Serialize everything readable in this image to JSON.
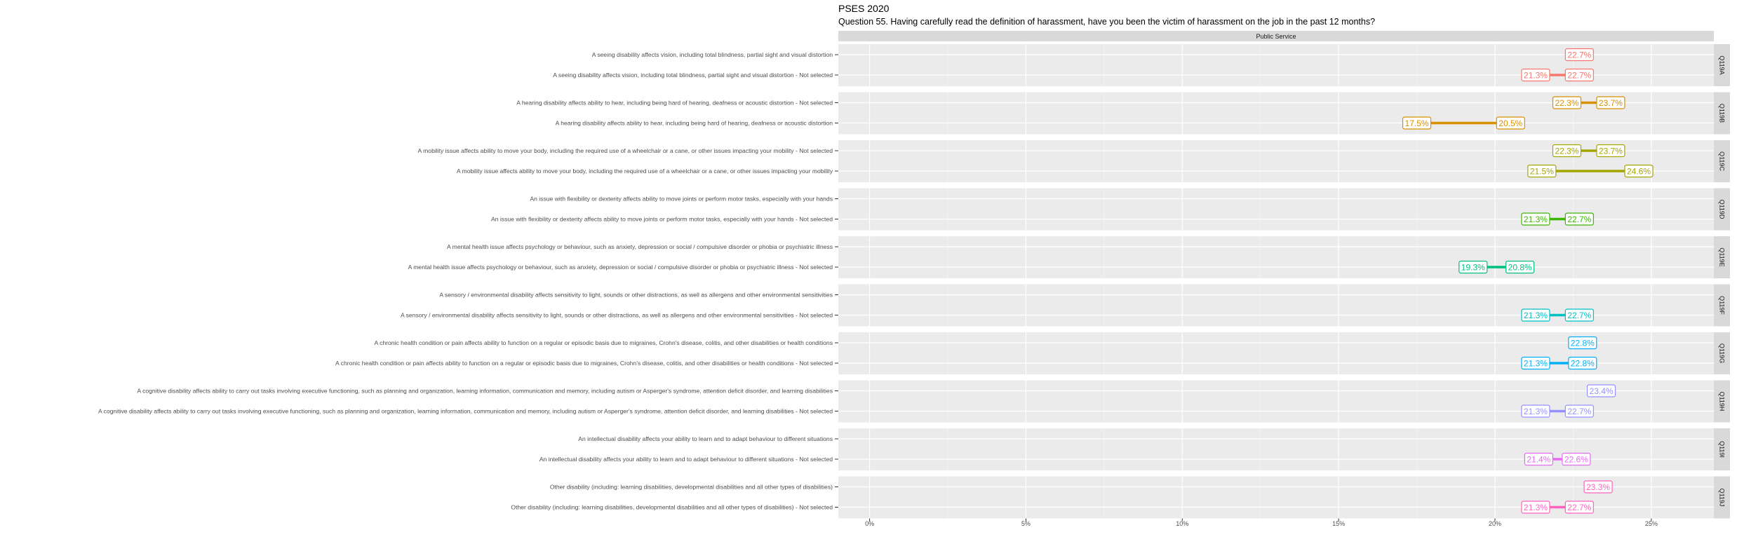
{
  "chart_data": {
    "type": "dumbbell",
    "title": "PSES 2020",
    "subtitle": "Question 55. Having carefully read the definition of harassment, have you been the victim of harassment on the job in the past 12 months?",
    "facet_header": "Public Service",
    "xlim": [
      -1,
      27
    ],
    "x_ticks": [
      0,
      5,
      10,
      15,
      20,
      25
    ],
    "x_tick_labels": [
      "0%",
      "5%",
      "10%",
      "15%",
      "20%",
      "25%"
    ],
    "grid": true,
    "colors": {
      "panel_bg": "#ebebeb",
      "grid": "#ffffff",
      "strip_bg": "#d9d9d9"
    },
    "groups": [
      {
        "code": "Q119A",
        "color": "#F8766D",
        "rows": [
          {
            "label": "A seeing disability affects vision, including total blindness, partial sight and visual distortion",
            "values": [
              22.7
            ]
          },
          {
            "label": "A seeing disability affects vision, including total blindness, partial sight and visual distortion - Not selected",
            "values": [
              21.3,
              22.7
            ]
          }
        ]
      },
      {
        "code": "Q119B",
        "color": "#D89000",
        "rows": [
          {
            "label": "A hearing disability affects ability to hear, including being hard of hearing, deafness or acoustic distortion - Not selected",
            "values": [
              22.3,
              23.7
            ]
          },
          {
            "label": "A hearing disability affects ability to hear, including being hard of hearing, deafness or acoustic distortion",
            "values": [
              17.5,
              20.5
            ]
          }
        ]
      },
      {
        "code": "Q119C",
        "color": "#A3A500",
        "rows": [
          {
            "label": "A mobility issue affects ability to move your body, including the required use of a wheelchair or a cane, or other issues impacting your mobility - Not selected",
            "values": [
              22.3,
              23.7
            ]
          },
          {
            "label": "A mobility issue affects ability to move your body, including the required use of a wheelchair or a cane, or other issues impacting your mobility",
            "values": [
              21.5,
              24.6
            ]
          }
        ]
      },
      {
        "code": "Q119D",
        "color": "#39B600",
        "rows": [
          {
            "label": "An issue with flexibility or dexterity affects ability to move joints or perform motor tasks, especially with your hands",
            "values": []
          },
          {
            "label": "An issue with flexibility or dexterity affects ability to move joints or perform motor tasks, especially with your hands - Not selected",
            "values": [
              21.3,
              22.7
            ]
          }
        ]
      },
      {
        "code": "Q119E",
        "color": "#00BF7D",
        "rows": [
          {
            "label": "A mental health issue affects psychology or behaviour, such as anxiety, depression or social / compulsive disorder or phobia or psychiatric illness",
            "values": []
          },
          {
            "label": "A mental health issue affects psychology or behaviour, such as anxiety, depression or social / compulsive disorder or phobia or psychiatric illness - Not selected",
            "values": [
              19.3,
              20.8
            ]
          }
        ]
      },
      {
        "code": "Q119F",
        "color": "#00BFC4",
        "rows": [
          {
            "label": "A sensory / environmental disability affects sensitivity to light, sounds or other distractions, as well as allergens and other environmental sensitivities",
            "values": []
          },
          {
            "label": "A sensory / environmental disability affects sensitivity to light, sounds or other distractions, as well as allergens and other environmental sensitivities - Not selected",
            "values": [
              21.3,
              22.7
            ]
          }
        ]
      },
      {
        "code": "Q119G",
        "color": "#00B0F6",
        "rows": [
          {
            "label": "A chronic health condition or pain affects ability to function on a regular or episodic basis due to migraines, Crohn's disease, colitis, and other disabilities or health conditions",
            "values": [
              22.8
            ]
          },
          {
            "label": "A chronic health condition or pain affects ability to function on a regular or episodic basis due to migraines, Crohn's disease, colitis, and other disabilities or health conditions - Not selected",
            "values": [
              21.3,
              22.8
            ]
          }
        ]
      },
      {
        "code": "Q119H",
        "color": "#9590FF",
        "rows": [
          {
            "label": "A cognitive disability affects ability to carry out tasks involving executive functioning, such as planning and organization, learning information, communication and memory, including autism or Asperger's syndrome, attention deficit disorder, and learning disabilities",
            "values": [
              23.4
            ]
          },
          {
            "label": "A cognitive disability affects ability to carry out tasks involving executive functioning, such as planning and organization, learning information, communication and memory, including autism or Asperger's syndrome, attention deficit disorder, and learning disabilities - Not selected",
            "values": [
              21.3,
              22.7
            ]
          }
        ]
      },
      {
        "code": "Q119I",
        "color": "#E76BF3",
        "rows": [
          {
            "label": "An intellectual disability affects your ability to learn and to adapt behaviour to different situations",
            "values": []
          },
          {
            "label": "An intellectual disability affects your ability to learn and to adapt behaviour to different situations - Not selected",
            "values": [
              21.4,
              22.6
            ]
          }
        ]
      },
      {
        "code": "Q119J",
        "color": "#FF62BC",
        "rows": [
          {
            "label": "Other disability (including: learning disabilities, developmental disabilities and all other types of disabilities)",
            "values": [
              23.3
            ]
          },
          {
            "label": "Other disability (including: learning disabilities, developmental disabilities and all other types of disabilities) - Not selected",
            "values": [
              21.3,
              22.7
            ]
          }
        ]
      }
    ]
  }
}
